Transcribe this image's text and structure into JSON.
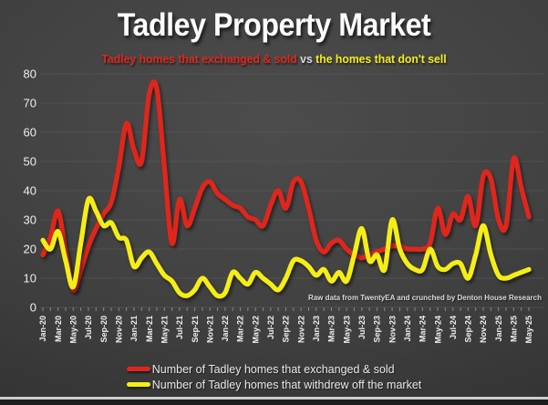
{
  "title": "Tadley Property Market",
  "subtitle": {
    "sold_text": "Tadley homes that exchanged & sold",
    "vs_text": "vs",
    "withdrew_text": "the homes that don't sell"
  },
  "attribution": "Raw data from TwentyEA and crunched by Denton House Research",
  "legend": {
    "sold_label": "Number of Tadley homes that exchanged & sold",
    "withdrew_label": "Number of Tadley homes that withdrew off the market"
  },
  "colors": {
    "sold_line": "#e0261a",
    "withdrew_line": "#f5ee16",
    "subtitle_vs": "#d9d9d9",
    "axis_text": "#efefef",
    "grid_line": "#5c5c5c",
    "background_center": "#4c4c4c",
    "background_edge": "#242424"
  },
  "chart_data": {
    "type": "line",
    "smoothing": "spline",
    "grid": true,
    "legend_position": "bottom",
    "ylim": [
      0,
      80
    ],
    "yticks": [
      0,
      10,
      20,
      30,
      40,
      50,
      60,
      70,
      80
    ],
    "x": [
      "Jan-20",
      "Feb-20",
      "Mar-20",
      "Apr-20",
      "May-20",
      "Jun-20",
      "Jul-20",
      "Aug-20",
      "Sep-20",
      "Oct-20",
      "Nov-20",
      "Dec-20",
      "Jan-21",
      "Feb-21",
      "Mar-21",
      "Apr-21",
      "May-21",
      "Jun-21",
      "Jul-21",
      "Aug-21",
      "Sep-21",
      "Oct-21",
      "Nov-21",
      "Dec-21",
      "Jan-22",
      "Feb-22",
      "Mar-22",
      "Apr-22",
      "May-22",
      "Jun-22",
      "Jul-22",
      "Aug-22",
      "Sep-22",
      "Oct-22",
      "Nov-22",
      "Dec-22",
      "Jan-23",
      "Feb-23",
      "Mar-23",
      "Apr-23",
      "May-23",
      "Jun-23",
      "Jul-23",
      "Aug-23",
      "Sep-23",
      "Oct-23",
      "Nov-23",
      "Dec-23",
      "Jan-24",
      "Feb-24",
      "Mar-24",
      "Apr-24",
      "May-24",
      "Jun-24",
      "Jul-24",
      "Aug-24",
      "Sep-24",
      "Oct-24",
      "Nov-24",
      "Dec-24",
      "Jan-25",
      "Feb-25",
      "Mar-25",
      "Apr-25",
      "May-25"
    ],
    "x_tick_labels_shown": [
      "Jan-20",
      "Mar-20",
      "May-20",
      "Jul-20",
      "Sep-20",
      "Nov-20",
      "Jan-21",
      "Mar-21",
      "May-21",
      "Jul-21",
      "Sep-21",
      "Nov-21",
      "Jan-22",
      "Mar-22",
      "May-22",
      "Jul-22",
      "Sep-22",
      "Nov-22",
      "Jan-23",
      "Mar-23",
      "May-23",
      "Jul-23",
      "Sep-23",
      "Nov-23",
      "Jan-24",
      "Mar-24",
      "May-24",
      "Jul-24",
      "Sep-24",
      "Nov-24",
      "Jan-25",
      "Mar-25",
      "May-25"
    ],
    "series": [
      {
        "name": "Number of Tadley homes that exchanged & sold",
        "color": "#e0261a",
        "values": [
          18,
          24,
          33,
          19,
          6,
          13,
          21,
          27,
          32,
          36,
          48,
          63,
          54,
          50,
          73,
          75,
          48,
          22,
          37,
          28,
          34,
          41,
          43,
          39,
          37,
          35,
          34,
          31,
          30,
          28,
          35,
          40,
          34,
          43,
          43,
          34,
          23,
          19,
          22,
          23,
          20,
          18,
          17,
          18,
          19,
          20,
          21,
          21,
          20,
          20,
          20,
          22,
          34,
          25,
          32,
          30,
          38,
          28,
          45,
          44,
          30,
          28,
          51,
          41,
          31
        ]
      },
      {
        "name": "Number of Tadley homes that withdrew off the market",
        "color": "#f5ee16",
        "values": [
          23,
          20,
          26,
          16,
          7,
          22,
          37,
          33,
          28,
          29,
          24,
          23,
          14,
          17,
          19,
          15,
          11,
          9,
          5,
          4,
          6,
          10,
          7,
          4,
          5,
          12,
          10,
          8,
          12,
          10,
          8,
          6,
          10,
          16,
          16,
          14,
          11,
          13,
          9,
          12,
          9,
          18,
          27,
          16,
          18,
          13,
          30,
          20,
          15,
          13,
          13,
          20,
          14,
          13,
          15,
          15,
          10,
          18,
          28,
          18,
          11,
          10,
          11,
          12,
          13
        ]
      }
    ]
  }
}
